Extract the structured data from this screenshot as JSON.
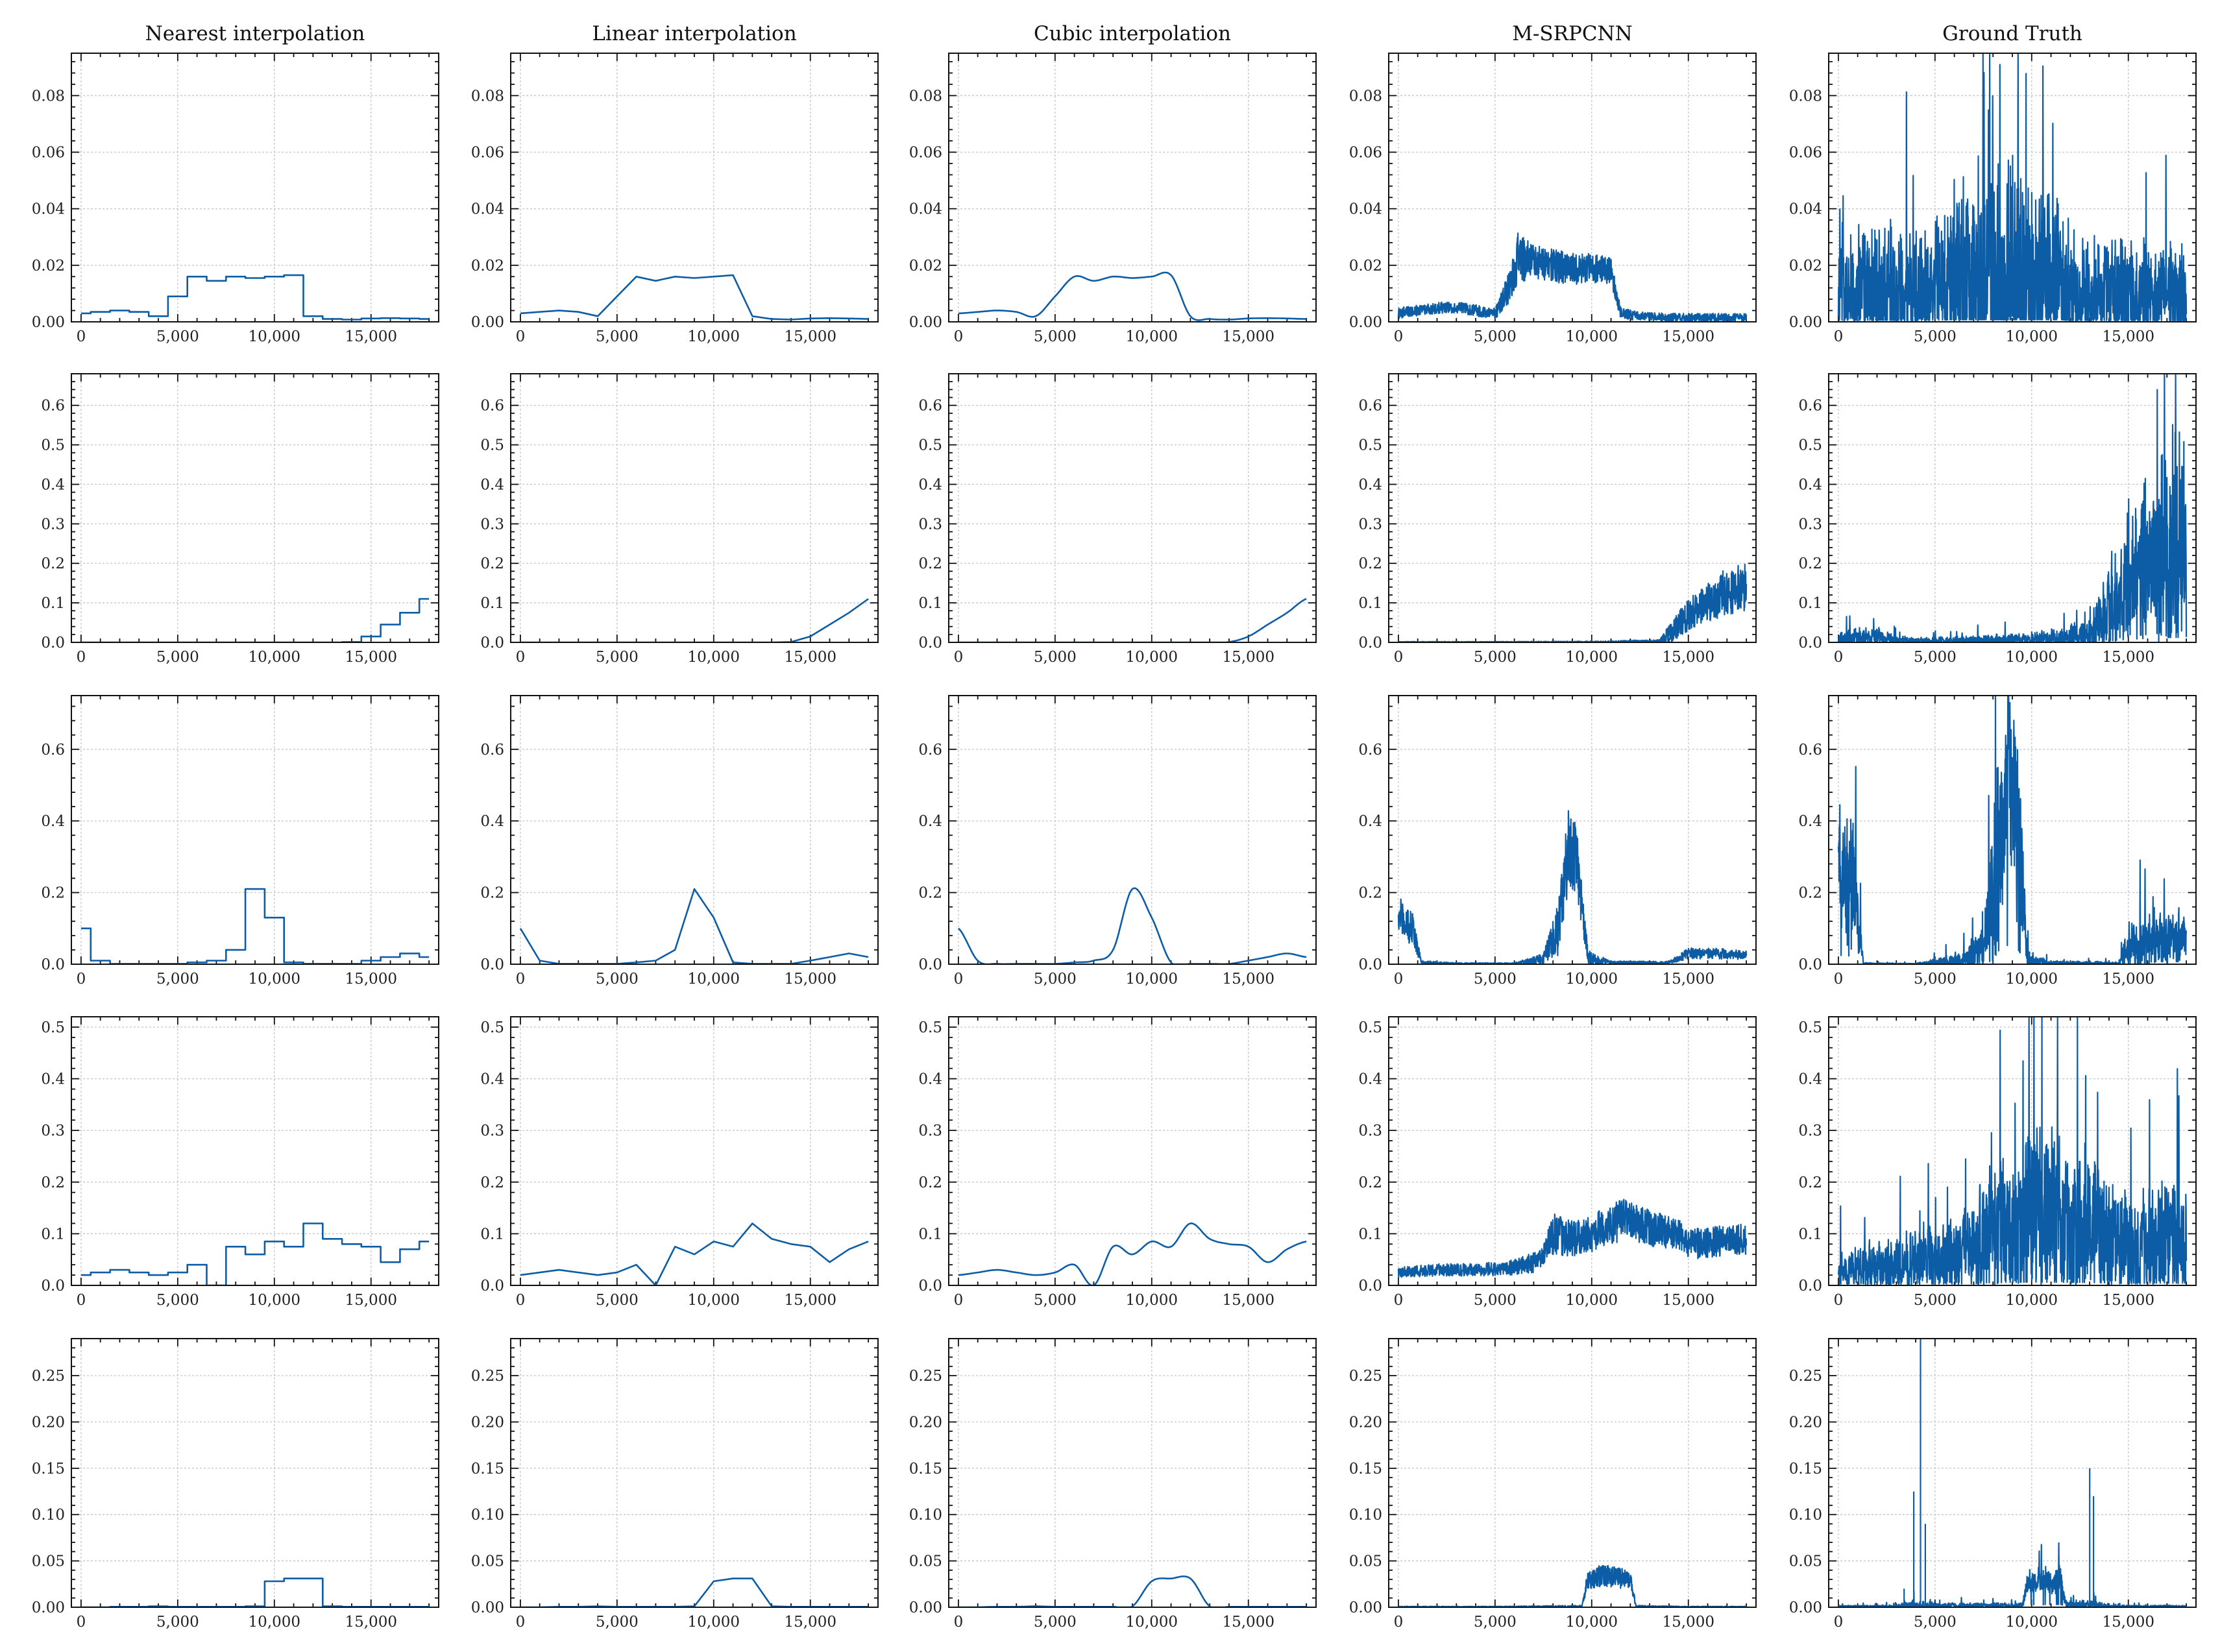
{
  "chart_data": [
    {
      "type": "grid-of-line-charts",
      "columns": [
        "Nearest interpolation",
        "Linear interpolation",
        "Cubic interpolation",
        "M-SRPCNN",
        "Ground Truth"
      ],
      "x_range": [
        0,
        18000
      ],
      "x_ticks": [
        0,
        5000,
        10000,
        15000
      ],
      "x_tick_labels": [
        "0",
        "5,000",
        "10,000",
        "15,000"
      ],
      "line_color": "#0c5da5",
      "rows": [
        {
          "ylim": [
            0,
            0.095
          ],
          "y_ticks": [
            0,
            0.02,
            0.04,
            0.06,
            0.08
          ],
          "y_tick_labels": [
            "0.00",
            "0.02",
            "0.04",
            "0.06",
            "0.08"
          ],
          "coarse": {
            "x": [
              0,
              1000,
              2000,
              3000,
              4000,
              5000,
              6000,
              7000,
              8000,
              9000,
              10000,
              11000,
              12000,
              13000,
              14000,
              15000,
              16000,
              17000,
              18000
            ],
            "y": [
              0.003,
              0.0035,
              0.004,
              0.0035,
              0.002,
              0.009,
              0.016,
              0.0145,
              0.016,
              0.0155,
              0.016,
              0.0165,
              0.002,
              0.001,
              0.0008,
              0.0012,
              0.0013,
              0.0012,
              0.001
            ]
          },
          "pred_profile": {
            "x": [
              0,
              1000,
              2000,
              3000,
              4000,
              5000,
              5800,
              6200,
              7000,
              8000,
              9000,
              10000,
              11000,
              11500,
              12500,
              14000,
              16000,
              18000
            ],
            "level": [
              0.003,
              0.004,
              0.005,
              0.005,
              0.004,
              0.003,
              0.013,
              0.023,
              0.021,
              0.02,
              0.019,
              0.019,
              0.018,
              0.003,
              0.002,
              0.0015,
              0.0015,
              0.0015
            ],
            "spread": [
              0.002,
              0.002,
              0.002,
              0.002,
              0.002,
              0.002,
              0.006,
              0.009,
              0.006,
              0.006,
              0.006,
              0.005,
              0.005,
              0.002,
              0.0015,
              0.0015,
              0.0015,
              0.0015
            ]
          },
          "truth_profile": {
            "x": [
              0,
              2000,
              4000,
              5000,
              6000,
              8000,
              10000,
              11500,
              12000,
              14000,
              16000,
              18000
            ],
            "level": [
              0.012,
              0.012,
              0.01,
              0.012,
              0.015,
              0.015,
              0.015,
              0.015,
              0.01,
              0.01,
              0.01,
              0.009
            ],
            "spread": [
              0.018,
              0.018,
              0.016,
              0.018,
              0.026,
              0.03,
              0.03,
              0.025,
              0.016,
              0.015,
              0.015,
              0.014
            ]
          }
        },
        {
          "ylim": [
            0,
            0.68
          ],
          "y_ticks": [
            0,
            0.1,
            0.2,
            0.3,
            0.4,
            0.5,
            0.6
          ],
          "y_tick_labels": [
            "0.0",
            "0.1",
            "0.2",
            "0.3",
            "0.4",
            "0.5",
            "0.6"
          ],
          "coarse": {
            "x": [
              0,
              1000,
              2000,
              3000,
              4000,
              5000,
              6000,
              7000,
              8000,
              9000,
              10000,
              11000,
              12000,
              13000,
              14000,
              15000,
              16000,
              17000,
              18000
            ],
            "y": [
              0,
              0,
              0,
              0,
              0,
              0,
              0,
              0,
              0,
              0,
              0,
              0,
              0,
              0,
              0.001,
              0.015,
              0.045,
              0.075,
              0.11
            ]
          },
          "pred_profile": {
            "x": [
              0,
              5000,
              10000,
              13500,
              14200,
              15000,
              16000,
              17000,
              18000
            ],
            "level": [
              0.001,
              0.001,
              0.001,
              0.003,
              0.03,
              0.07,
              0.1,
              0.13,
              0.14
            ],
            "spread": [
              0.001,
              0.001,
              0.002,
              0.004,
              0.03,
              0.04,
              0.05,
              0.06,
              0.06
            ]
          },
          "truth_profile": {
            "x": [
              0,
              2000,
              3000,
              5000,
              8000,
              10000,
              13000,
              14000,
              15000,
              16000,
              17000,
              18000
            ],
            "level": [
              0.01,
              0.015,
              0.006,
              0.004,
              0.006,
              0.008,
              0.02,
              0.08,
              0.15,
              0.2,
              0.25,
              0.25
            ],
            "spread": [
              0.012,
              0.02,
              0.008,
              0.006,
              0.01,
              0.012,
              0.03,
              0.09,
              0.14,
              0.17,
              0.2,
              0.2
            ]
          }
        },
        {
          "ylim": [
            0,
            0.75
          ],
          "y_ticks": [
            0,
            0.2,
            0.4,
            0.6
          ],
          "y_tick_labels": [
            "0.0",
            "0.2",
            "0.4",
            "0.6"
          ],
          "coarse": {
            "x": [
              0,
              1000,
              2000,
              3000,
              4000,
              5000,
              6000,
              7000,
              8000,
              9000,
              10000,
              11000,
              12000,
              13000,
              14000,
              15000,
              16000,
              17000,
              18000
            ],
            "y": [
              0.1,
              0.01,
              0.001,
              0.001,
              0.001,
              0.001,
              0.005,
              0.01,
              0.04,
              0.21,
              0.13,
              0.005,
              0.001,
              0.001,
              0.001,
              0.01,
              0.02,
              0.03,
              0.02
            ]
          },
          "pred_profile": {
            "x": [
              0,
              700,
              1200,
              3000,
              6000,
              7500,
              8300,
              8800,
              9200,
              9800,
              11000,
              14000,
              15000,
              16500,
              18000
            ],
            "level": [
              0.14,
              0.1,
              0.006,
              0.002,
              0.002,
              0.015,
              0.1,
              0.33,
              0.3,
              0.02,
              0.005,
              0.004,
              0.03,
              0.03,
              0.025
            ],
            "spread": [
              0.05,
              0.05,
              0.004,
              0.002,
              0.002,
              0.015,
              0.08,
              0.12,
              0.12,
              0.02,
              0.004,
              0.004,
              0.015,
              0.015,
              0.012
            ]
          },
          "truth_profile": {
            "x": [
              0,
              800,
              1300,
              4000,
              6500,
              7500,
              8300,
              8800,
              9300,
              9800,
              11000,
              14500,
              15000,
              16500,
              18000
            ],
            "level": [
              0.25,
              0.22,
              0.002,
              0.001,
              0.01,
              0.04,
              0.3,
              0.55,
              0.4,
              0.01,
              0.004,
              0.003,
              0.05,
              0.07,
              0.07
            ],
            "spread": [
              0.15,
              0.15,
              0.002,
              0.001,
              0.02,
              0.05,
              0.2,
              0.2,
              0.2,
              0.02,
              0.004,
              0.003,
              0.05,
              0.06,
              0.06
            ]
          }
        },
        {
          "ylim": [
            0,
            0.52
          ],
          "y_ticks": [
            0,
            0.1,
            0.2,
            0.3,
            0.4,
            0.5
          ],
          "y_tick_labels": [
            "0.0",
            "0.1",
            "0.2",
            "0.3",
            "0.4",
            "0.5"
          ],
          "coarse": {
            "x": [
              0,
              1000,
              2000,
              3000,
              4000,
              5000,
              6000,
              7000,
              8000,
              9000,
              10000,
              11000,
              12000,
              13000,
              14000,
              15000,
              16000,
              17000,
              18000
            ],
            "y": [
              0.02,
              0.025,
              0.03,
              0.025,
              0.02,
              0.025,
              0.04,
              0.0,
              0.075,
              0.06,
              0.085,
              0.075,
              0.12,
              0.09,
              0.08,
              0.075,
              0.045,
              0.07,
              0.085
            ]
          },
          "pred_profile": {
            "x": [
              0,
              2000,
              4000,
              6000,
              7000,
              7500,
              8000,
              9000,
              10000,
              11000,
              12000,
              13000,
              14500,
              15000,
              16500,
              18000
            ],
            "level": [
              0.025,
              0.03,
              0.03,
              0.035,
              0.045,
              0.06,
              0.1,
              0.09,
              0.1,
              0.12,
              0.13,
              0.11,
              0.1,
              0.08,
              0.085,
              0.09
            ],
            "spread": [
              0.01,
              0.012,
              0.012,
              0.015,
              0.02,
              0.02,
              0.04,
              0.035,
              0.035,
              0.04,
              0.04,
              0.035,
              0.03,
              0.03,
              0.03,
              0.03
            ]
          },
          "truth_profile": {
            "x": [
              0,
              2000,
              4000,
              6000,
              7000,
              7500,
              8000,
              9000,
              10000,
              12000,
              14000,
              15500,
              16000,
              18000
            ],
            "level": [
              0.03,
              0.04,
              0.05,
              0.06,
              0.06,
              0.1,
              0.1,
              0.12,
              0.13,
              0.12,
              0.1,
              0.06,
              0.09,
              0.09
            ],
            "spread": [
              0.03,
              0.035,
              0.045,
              0.06,
              0.07,
              0.09,
              0.09,
              0.12,
              0.13,
              0.12,
              0.1,
              0.06,
              0.09,
              0.08
            ]
          }
        },
        {
          "ylim": [
            0,
            0.29
          ],
          "y_ticks": [
            0,
            0.05,
            0.1,
            0.15,
            0.2,
            0.25
          ],
          "y_tick_labels": [
            "0.00",
            "0.05",
            "0.10",
            "0.15",
            "0.20",
            "0.25"
          ],
          "coarse": {
            "x": [
              0,
              1000,
              2000,
              3000,
              4000,
              5000,
              6000,
              7000,
              8000,
              9000,
              10000,
              11000,
              12000,
              13000,
              14000,
              15000,
              16000,
              17000,
              18000
            ],
            "y": [
              0,
              0,
              0.0005,
              0.0005,
              0.001,
              0.0005,
              0.0005,
              0.0005,
              0.0005,
              0.001,
              0.028,
              0.031,
              0.031,
              0.001,
              0.0005,
              0.0005,
              0.0005,
              0.0005,
              0.0005
            ]
          },
          "pred_profile": {
            "x": [
              0,
              5000,
              9500,
              9800,
              10500,
              11500,
              12000,
              12300,
              15000,
              18000
            ],
            "level": [
              0.0005,
              0.0005,
              0.001,
              0.03,
              0.034,
              0.032,
              0.03,
              0.001,
              0.0005,
              0.0005
            ],
            "spread": [
              0.0005,
              0.0005,
              0.001,
              0.01,
              0.012,
              0.012,
              0.01,
              0.001,
              0.0005,
              0.0005
            ]
          },
          "truth_profile": {
            "x": [
              0,
              3000,
              4000,
              5000,
              9500,
              9800,
              11500,
              11800,
              13000,
              14000,
              18000
            ],
            "level": [
              0.001,
              0.001,
              0.003,
              0.002,
              0.002,
              0.028,
              0.03,
              0.003,
              0.003,
              0.001,
              0.001
            ],
            "spread": [
              0.001,
              0.001,
              0.004,
              0.002,
              0.002,
              0.012,
              0.012,
              0.003,
              0.004,
              0.001,
              0.001
            ]
          },
          "truth_spikes": [
            {
              "x": 3400,
              "y": 0.02
            },
            {
              "x": 3900,
              "y": 0.125
            },
            {
              "x": 4250,
              "y": 0.29
            },
            {
              "x": 4500,
              "y": 0.09
            },
            {
              "x": 10600,
              "y": 0.04
            },
            {
              "x": 13000,
              "y": 0.15
            },
            {
              "x": 13200,
              "y": 0.12
            }
          ]
        }
      ]
    }
  ]
}
